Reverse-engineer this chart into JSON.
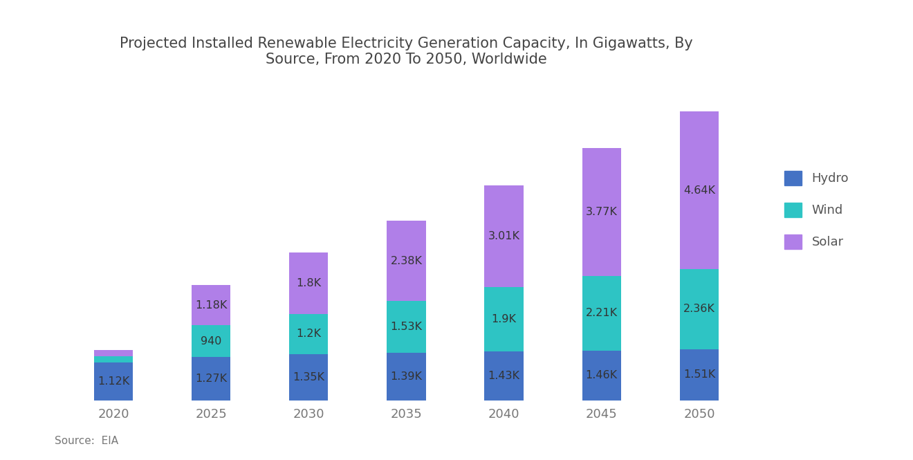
{
  "title": "Projected Installed Renewable Electricity Generation Capacity, In Gigawatts, By\nSource, From 2020 To 2050, Worldwide",
  "years": [
    2020,
    2025,
    2030,
    2035,
    2040,
    2045,
    2050
  ],
  "hydro": [
    1120,
    1270,
    1350,
    1390,
    1430,
    1460,
    1510
  ],
  "wind": [
    180,
    940,
    1200,
    1530,
    1900,
    2210,
    2360
  ],
  "solar": [
    180,
    1180,
    1800,
    2380,
    3010,
    3770,
    4640
  ],
  "hydro_labels": [
    "1.12K",
    "1.27K",
    "1.35K",
    "1.39K",
    "1.43K",
    "1.46K",
    "1.51K"
  ],
  "wind_labels": [
    "",
    "940",
    "1.2K",
    "1.53K",
    "1.9K",
    "2.21K",
    "2.36K"
  ],
  "solar_labels": [
    "",
    "1.18K",
    "1.8K",
    "2.38K",
    "3.01K",
    "3.77K",
    "4.64K"
  ],
  "hydro_color": "#4472C4",
  "wind_color": "#2EC4C4",
  "solar_color": "#B07FE8",
  "background_color": "#FFFFFF",
  "label_fontsize": 11.5,
  "title_fontsize": 15,
  "source_text": "Source:  EIA",
  "legend_labels": [
    "Hydro",
    "Wind",
    "Solar"
  ]
}
